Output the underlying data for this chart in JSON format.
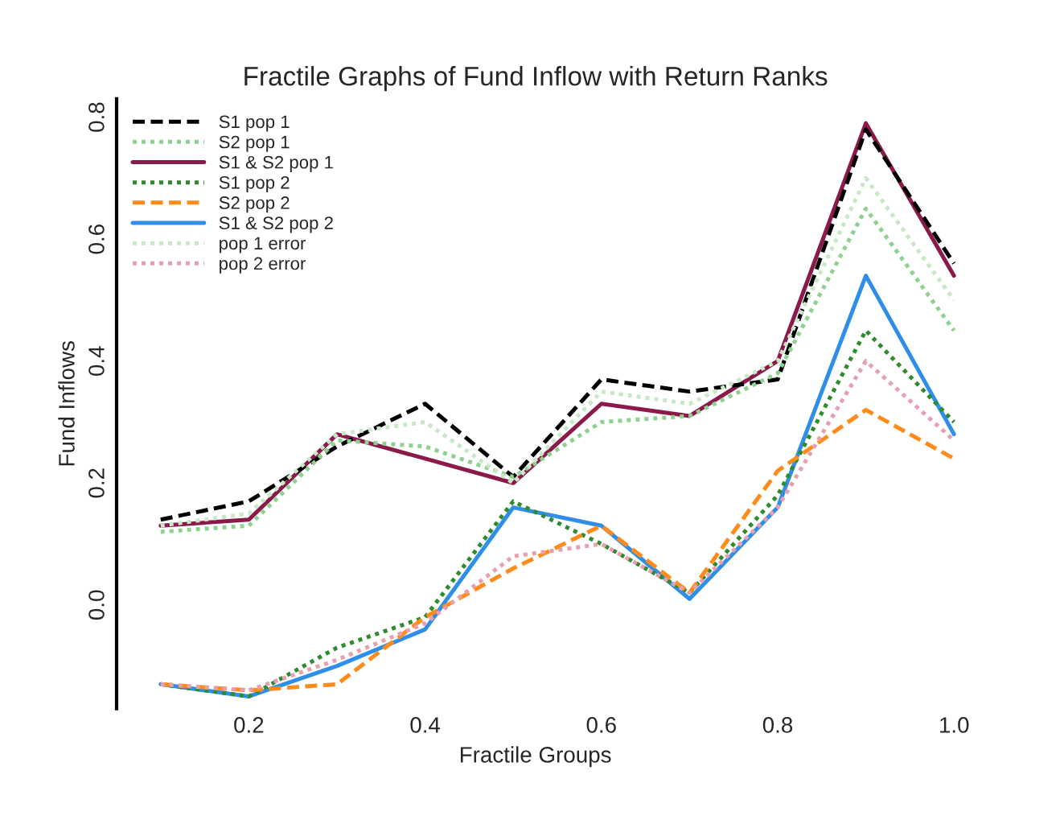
{
  "chart_data": {
    "type": "line",
    "title": "Fractile Graphs of Fund Inflow with Return Ranks",
    "xlabel": "Fractile Groups",
    "ylabel": "Fund Inflows",
    "x": [
      0.1,
      0.2,
      0.3,
      0.4,
      0.5,
      0.6,
      0.7,
      0.8,
      0.9,
      1.0
    ],
    "xlim": [
      0.05,
      1.0
    ],
    "xticks": [
      {
        "value": 0.2,
        "label": "0.2"
      },
      {
        "value": 0.4,
        "label": "0.4"
      },
      {
        "value": 0.6,
        "label": "0.6"
      },
      {
        "value": 0.8,
        "label": "0.8"
      },
      {
        "value": 1.0,
        "label": "1.0"
      }
    ],
    "ylim": [
      -0.17,
      0.83
    ],
    "yticks": [
      {
        "value": 0.0,
        "label": "0.0"
      },
      {
        "value": 0.2,
        "label": "0.2"
      },
      {
        "value": 0.4,
        "label": "0.4"
      },
      {
        "value": 0.6,
        "label": "0.6"
      },
      {
        "value": 0.8,
        "label": "0.8"
      }
    ],
    "grid": false,
    "legend": "top left",
    "marker": "none",
    "series": [
      {
        "name": "S1 pop 1",
        "color": "#000000",
        "line_style": "dashed",
        "values": [
          0.14,
          0.17,
          0.26,
          0.33,
          0.21,
          0.37,
          0.35,
          0.37,
          0.78,
          0.56
        ]
      },
      {
        "name": "S2 pop 1",
        "color": "#8fd18f",
        "line_style": "dotted",
        "values": [
          0.12,
          0.13,
          0.27,
          0.26,
          0.21,
          0.3,
          0.31,
          0.38,
          0.65,
          0.45
        ]
      },
      {
        "name": "S1 & S2 pop 1",
        "color": "#8b1a4a",
        "line_style": "solid",
        "values": [
          0.13,
          0.14,
          0.28,
          0.24,
          0.2,
          0.33,
          0.31,
          0.4,
          0.79,
          0.54
        ]
      },
      {
        "name": "S1 pop 2",
        "color": "#2e8b2e",
        "line_style": "dotted",
        "values": [
          -0.13,
          -0.15,
          -0.07,
          -0.02,
          0.17,
          0.1,
          0.02,
          0.18,
          0.45,
          0.3
        ]
      },
      {
        "name": "S2 pop 2",
        "color": "#ff8c1a",
        "line_style": "dashed",
        "values": [
          -0.13,
          -0.14,
          -0.13,
          -0.02,
          0.06,
          0.13,
          0.02,
          0.22,
          0.32,
          0.24
        ]
      },
      {
        "name": "S1 & S2 pop 2",
        "color": "#2f8fe8",
        "line_style": "solid",
        "values": [
          -0.13,
          -0.15,
          -0.1,
          -0.04,
          0.16,
          0.13,
          0.01,
          0.16,
          0.54,
          0.28
        ]
      },
      {
        "name": "pop 1 error",
        "color": "#c8e8c8",
        "line_style": "dotted",
        "values": [
          0.13,
          0.15,
          0.28,
          0.3,
          0.2,
          0.35,
          0.33,
          0.4,
          0.7,
          0.5
        ]
      },
      {
        "name": "pop 2 error",
        "color": "#e8a0b0",
        "line_style": "dotted",
        "values": [
          -0.13,
          -0.14,
          -0.09,
          -0.03,
          0.08,
          0.1,
          0.02,
          0.16,
          0.4,
          0.27
        ]
      }
    ]
  }
}
